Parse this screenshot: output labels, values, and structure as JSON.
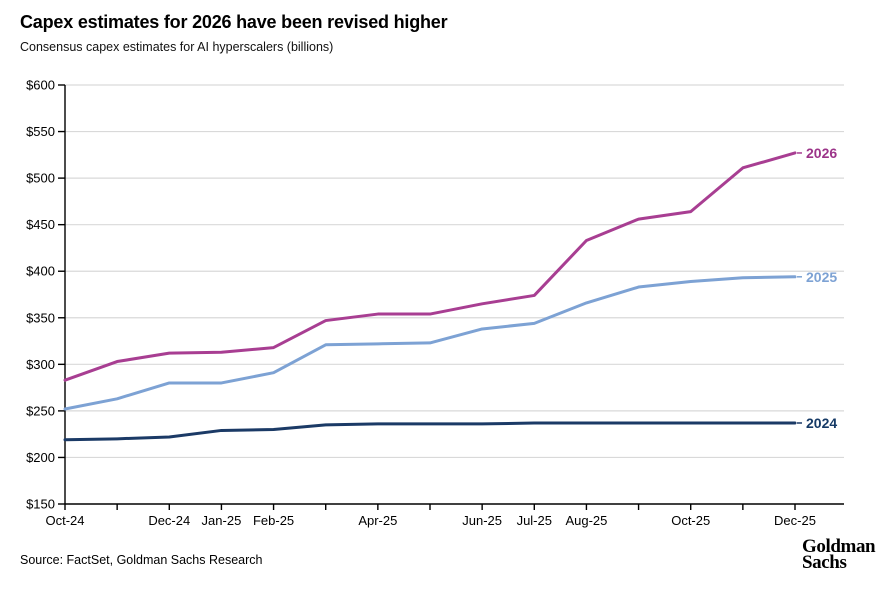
{
  "header": {
    "title": "Capex estimates for 2026 have been revised higher",
    "subtitle": "Consensus capex estimates for AI hyperscalers (billions)"
  },
  "footer": {
    "source": "Source: FactSet, Goldman Sachs Research",
    "logo": {
      "line1": "Goldman",
      "line2": "Sachs"
    }
  },
  "chart_data": {
    "type": "line",
    "title": "Capex estimates for 2026 have been revised higher",
    "subtitle": "Consensus capex estimates for AI hyperscalers (billions)",
    "x": [
      "Oct-24",
      "Nov-24",
      "Dec-24",
      "Jan-25",
      "Feb-25",
      "Mar-25",
      "Apr-25",
      "May-25",
      "Jun-25",
      "Jul-25",
      "Aug-25",
      "Sep-25",
      "Oct-25",
      "Nov-25",
      "Dec-25"
    ],
    "x_tick_labels": [
      "Oct-24",
      null,
      "Dec-24",
      "Jan-25",
      "Feb-25",
      null,
      "Apr-25",
      null,
      "Jun-25",
      "Jul-25",
      "Aug-25",
      null,
      "Oct-25",
      null,
      "Dec-25"
    ],
    "ylim": [
      150,
      600
    ],
    "ytick_interval": 50,
    "ytick_prefix": "$",
    "grid": "horizontal",
    "legend_position": "line-end-labels",
    "series": [
      {
        "name": "2026",
        "color": "#a83e92",
        "label_color": "#9c3489",
        "values": [
          283,
          303,
          312,
          313,
          318,
          347,
          354,
          354,
          365,
          374,
          433,
          456,
          464,
          511,
          527
        ]
      },
      {
        "name": "2025",
        "color": "#7da2d4",
        "label_color": "#7da2d4",
        "values": [
          252,
          263,
          280,
          280,
          291,
          321,
          322,
          323,
          338,
          344,
          366,
          383,
          389,
          393,
          394
        ]
      },
      {
        "name": "2024",
        "color": "#1b3a66",
        "label_color": "#163a66",
        "values": [
          219,
          220,
          222,
          229,
          230,
          235,
          236,
          236,
          236,
          237,
          237,
          237,
          237,
          237,
          237
        ]
      }
    ],
    "colors": {
      "grid": "#d9d9d9",
      "axis": "#000000",
      "tick_label": "#000000"
    }
  }
}
